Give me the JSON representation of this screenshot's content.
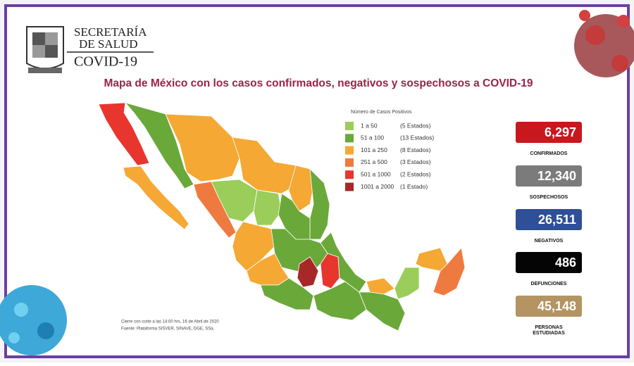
{
  "header": {
    "line1": "SECRETARÍA",
    "line2": "DE SALUD",
    "line3": "COVID-19"
  },
  "title": "Mapa de México con los casos confirmados, negativos y sospechosos a COVID-19",
  "legend": {
    "title": "Número de Casos Positivos",
    "items": [
      {
        "range": "1 a 50",
        "count": "(5 Estados)",
        "color": "#9acd5a"
      },
      {
        "range": "51 a 100",
        "count": "(13 Estados)",
        "color": "#6aa83a"
      },
      {
        "range": "101 a 250",
        "count": "(8 Estados)",
        "color": "#f5a834"
      },
      {
        "range": "251 a 500",
        "count": "(3 Estados)",
        "color": "#ef7a40"
      },
      {
        "range": "501 a 1000",
        "count": "(2 Estados)",
        "color": "#e8352e"
      },
      {
        "range": "1001 a 2000",
        "count": "(1 Estado)",
        "color": "#a82828"
      }
    ]
  },
  "stats": [
    {
      "value": "6,297",
      "label": [
        "CONFIRMADOS"
      ],
      "color": "#c8171d"
    },
    {
      "value": "12,340",
      "label": [
        "SOSPECHOSOS"
      ],
      "color": "#7b7b7b"
    },
    {
      "value": "26,511",
      "label": [
        "NEGATIVOS"
      ],
      "color": "#2f4f96"
    },
    {
      "value": "486",
      "label": [
        "DEFUNCIONES"
      ],
      "color": "#050505"
    },
    {
      "value": "45,148",
      "label": [
        "PERSONAS",
        "ESTUDIADAS"
      ],
      "color": "#b39462"
    }
  ],
  "footnotes": [
    "Cierre con corte a las 14:00 hrs, 16 de Abril de 2020",
    "Fuente: Plataforma SISVER, SINAVE, DGE, SSa."
  ]
}
